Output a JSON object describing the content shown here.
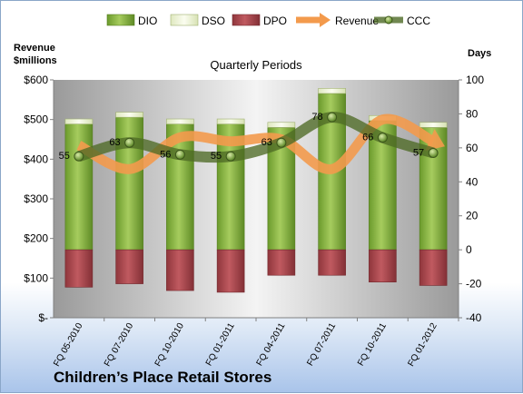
{
  "chart_data": {
    "type": "bar",
    "title": "Quarterly Periods",
    "left_axis_label": [
      "Revenue",
      "$millions"
    ],
    "right_axis_label": "Days",
    "company": "Children’s Place Retail Stores",
    "categories": [
      "FQ 05-2010",
      "FQ 07-2010",
      "FQ 10-2010",
      "FQ 01-2011",
      "FQ 04-2011",
      "FQ 07-2011",
      "FQ 10-2011",
      "FQ 01-2012"
    ],
    "left_axis": {
      "min": 0,
      "max": 600,
      "step": 100,
      "tick_labels": [
        "$-",
        "$100",
        "$200",
        "$300",
        "$400",
        "$500",
        "$600"
      ]
    },
    "right_axis": {
      "min": -40,
      "max": 100,
      "step": 20,
      "tick_labels": [
        "-40",
        "-20",
        "0",
        "20",
        "40",
        "60",
        "80",
        "100"
      ]
    },
    "series": [
      {
        "name": "DIO",
        "axis": "right",
        "kind": "stacked-bar",
        "color": "#7aa63a",
        "values": [
          74,
          78,
          74,
          74,
          72,
          92,
          76,
          72
        ]
      },
      {
        "name": "DSO",
        "axis": "right",
        "kind": "stacked-bar",
        "color": "#eef3da",
        "values": [
          3,
          3,
          3,
          3,
          3,
          3,
          3,
          3
        ]
      },
      {
        "name": "DPO",
        "axis": "right",
        "kind": "negative-bar",
        "color": "#a8464c",
        "values": [
          -22,
          -20,
          -24,
          -25,
          -15,
          -15,
          -19,
          -21
        ]
      },
      {
        "name": "Revenue",
        "axis": "left",
        "kind": "line",
        "color": "#f39a4c",
        "values": [
          435,
          375,
          455,
          445,
          450,
          375,
          500,
          445
        ]
      },
      {
        "name": "CCC",
        "axis": "right",
        "kind": "line",
        "color": "#4e6a25",
        "values": [
          55,
          63,
          56,
          55,
          63,
          78,
          66,
          57
        ],
        "labels": [
          "55",
          "63",
          "56",
          "55",
          "63",
          "78",
          "66",
          "57"
        ]
      }
    ],
    "legend_position": "top",
    "grid": false
  }
}
